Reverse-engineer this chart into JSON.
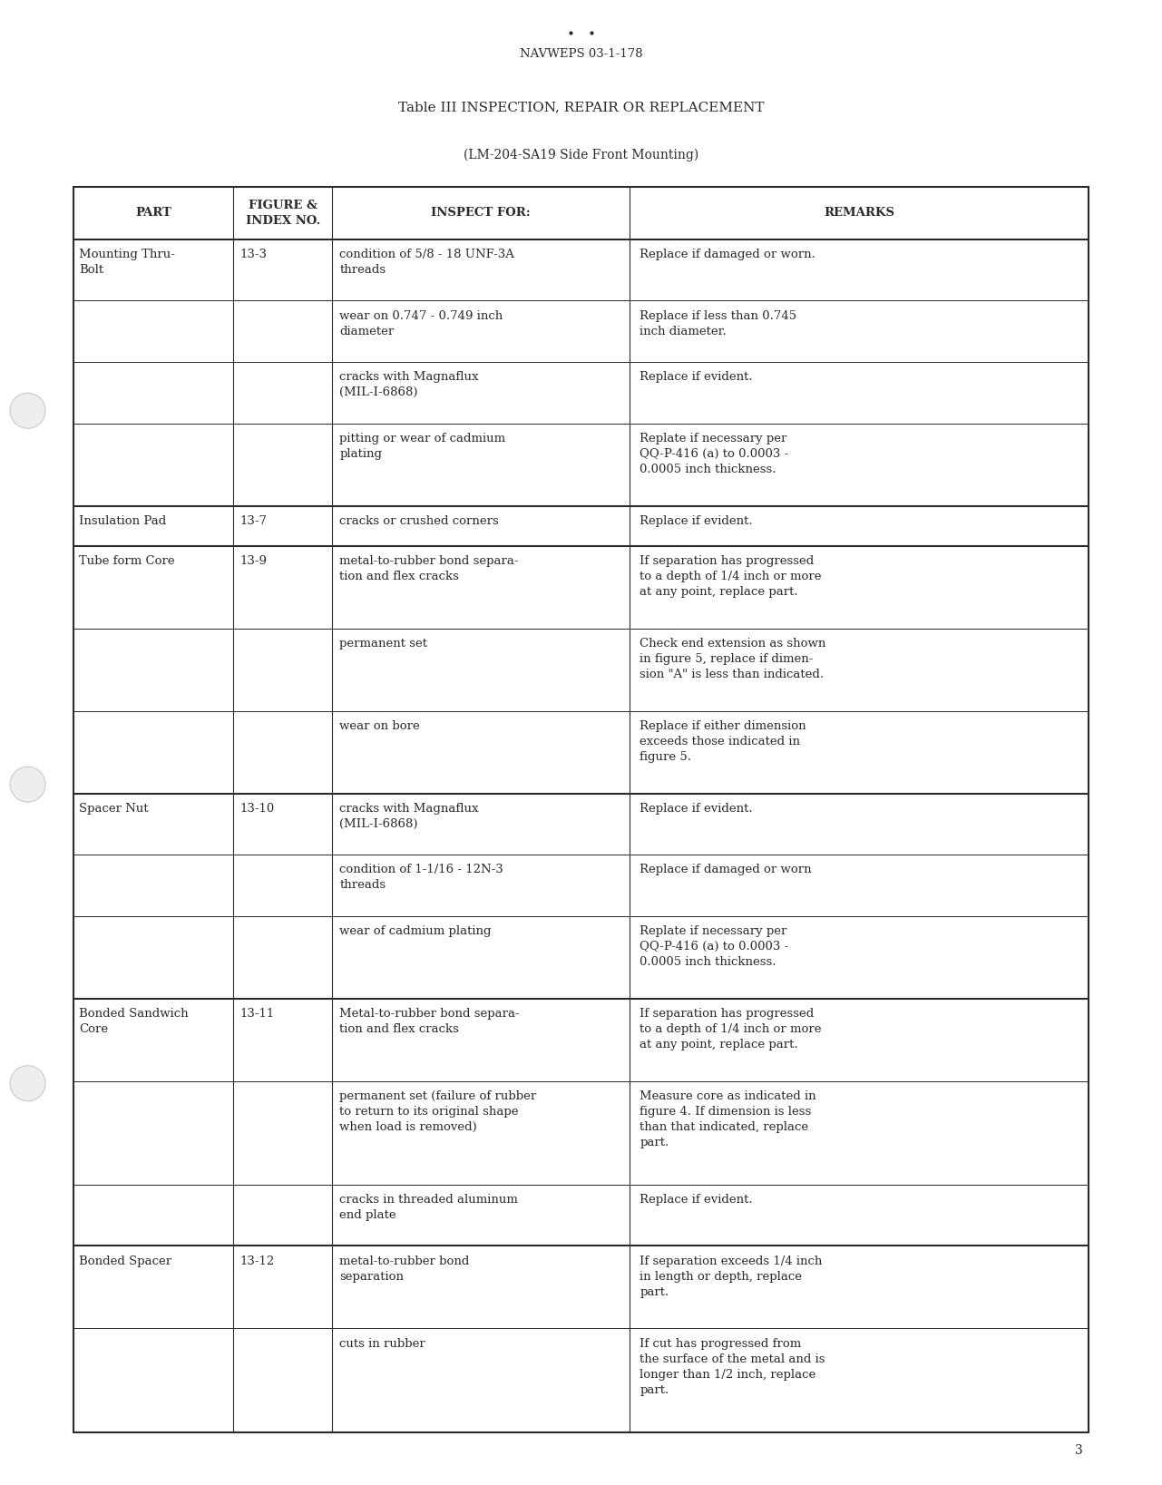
{
  "page_bg": "#ffffff",
  "header_text": "NAVWEPS 03-1-178",
  "title1": "Table III INSPECTION, REPAIR OR REPLACEMENT",
  "title2": "(LM-204-SA19 Side Front Mounting)",
  "col_headers": [
    "PART",
    "FIGURE &\nINDEX NO.",
    "INSPECT FOR:",
    "REMARKS"
  ],
  "font_color": "#2a2a2a",
  "rows": [
    {
      "part": "Mounting Thru-\nBolt",
      "index": "13-3",
      "sub_rows": [
        {
          "inspect": "condition of 5/8 - 18 UNF-3A\nthreads",
          "remarks": "Replace if damaged or worn."
        },
        {
          "inspect": "wear on 0.747 - 0.749 inch\ndiameter",
          "remarks": "Replace if less than 0.745\ninch diameter."
        },
        {
          "inspect": "cracks with Magnaflux\n(MIL-I-6868)",
          "remarks": "Replace if evident."
        },
        {
          "inspect": "pitting or wear of cadmium\nplating",
          "remarks": "Replate if necessary per\nQQ-P-416 (a) to 0.0003 -\n0.0005 inch thickness."
        }
      ]
    },
    {
      "part": "Insulation Pad",
      "index": "13-7",
      "sub_rows": [
        {
          "inspect": "cracks or crushed corners",
          "remarks": "Replace if evident."
        }
      ]
    },
    {
      "part": "Tube form Core",
      "index": "13-9",
      "sub_rows": [
        {
          "inspect": "metal-to-rubber bond separa-\ntion and flex cracks",
          "remarks": "If separation has progressed\nto a depth of 1/4 inch or more\nat any point, replace part."
        },
        {
          "inspect": "permanent set",
          "remarks": "Check end extension as shown\nin figure 5, replace if dimen-\nsion \"A\" is less than indicated."
        },
        {
          "inspect": "wear on bore",
          "remarks": "Replace if either dimension\nexceeds those indicated in\nfigure 5."
        }
      ]
    },
    {
      "part": "Spacer Nut",
      "index": "13-10",
      "sub_rows": [
        {
          "inspect": "cracks with Magnaflux\n(MIL-I-6868)",
          "remarks": "Replace if evident."
        },
        {
          "inspect": "condition of 1-1/16 - 12N-3\nthreads",
          "remarks": "Replace if damaged or worn"
        },
        {
          "inspect": "wear of cadmium plating",
          "remarks": "Replate if necessary per\nQQ-P-416 (a) to 0.0003 -\n0.0005 inch thickness."
        }
      ]
    },
    {
      "part": "Bonded Sandwich\nCore",
      "index": "13-11",
      "sub_rows": [
        {
          "inspect": "Metal-to-rubber bond separa-\ntion and flex cracks",
          "remarks": "If separation has progressed\nto a depth of 1/4 inch or more\nat any point, replace part."
        },
        {
          "inspect": "permanent set (failure of rubber\nto return to its original shape\nwhen load is removed)",
          "remarks": "Measure core as indicated in\nfigure 4. If dimension is less\nthan that indicated, replace\npart."
        },
        {
          "inspect": "cracks in threaded aluminum\nend plate",
          "remarks": "Replace if evident."
        }
      ]
    },
    {
      "part": "Bonded Spacer",
      "index": "13-12",
      "sub_rows": [
        {
          "inspect": "metal-to-rubber bond\nseparation",
          "remarks": "If separation exceeds 1/4 inch\nin length or depth, replace\npart."
        },
        {
          "inspect": "cuts in rubber",
          "remarks": "If cut has progressed from\nthe surface of the metal and is\nlonger than 1/2 inch, replace\npart."
        }
      ]
    }
  ],
  "page_number": "3"
}
